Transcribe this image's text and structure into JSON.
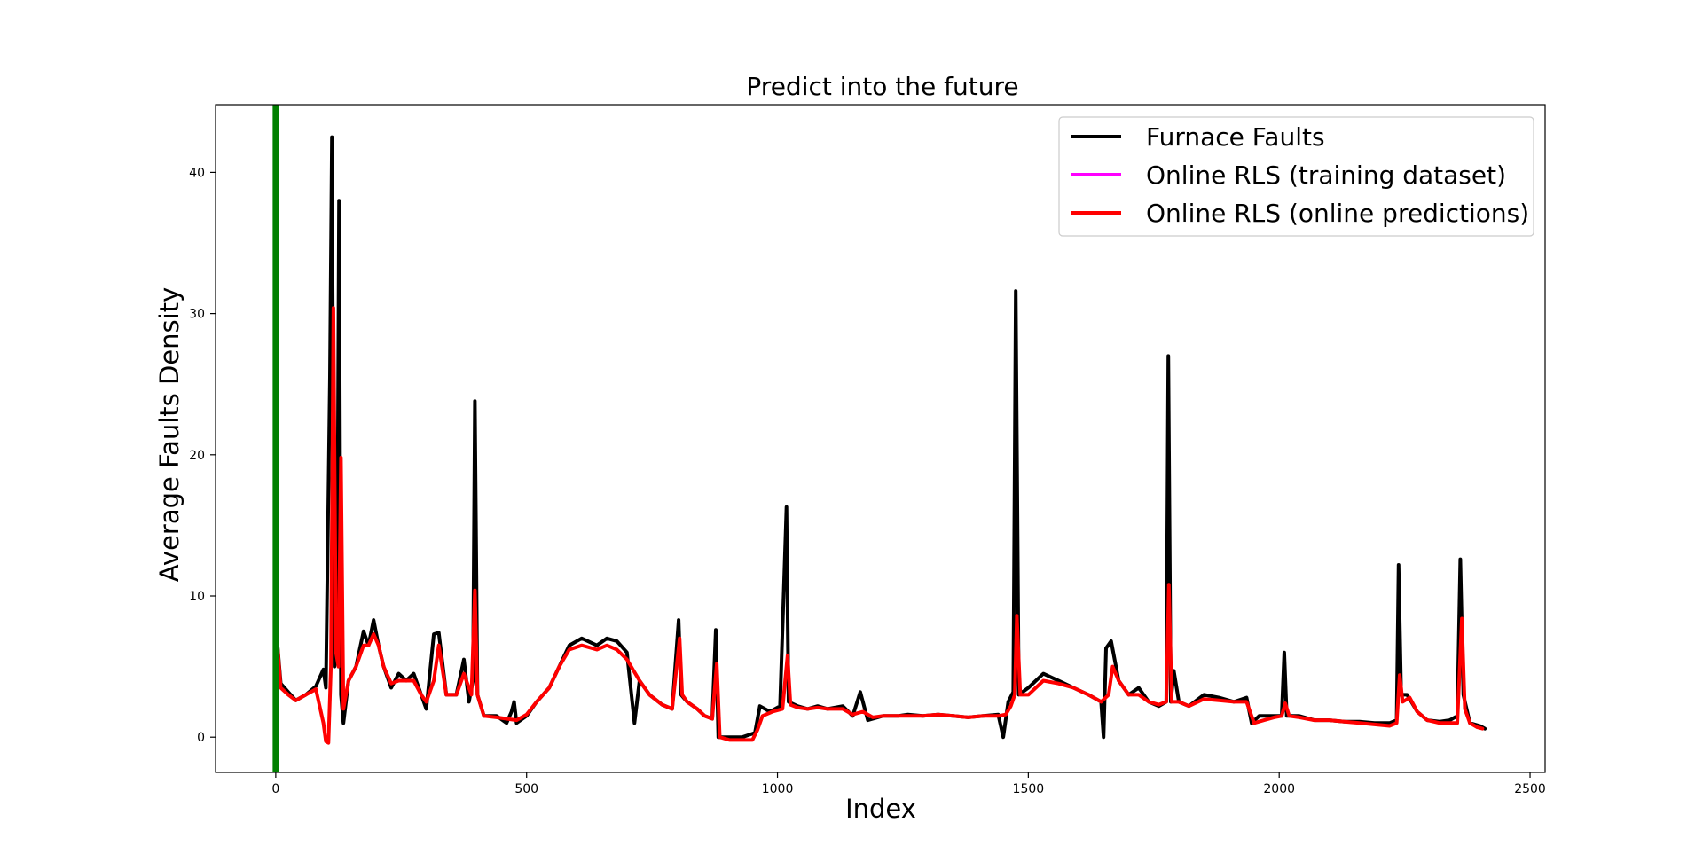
{
  "chart_data": {
    "type": "line",
    "title": "Predict into the future",
    "xlabel": "Index",
    "ylabel": "Average Faults Density",
    "xlim": [
      -120,
      2530
    ],
    "ylim": [
      -2.5,
      44.8
    ],
    "xticks": [
      0,
      500,
      1000,
      1500,
      2000,
      2500
    ],
    "yticks": [
      0,
      10,
      20,
      30,
      40
    ],
    "grid": false,
    "legend_position": "top-right",
    "vertical_marker": {
      "x": 0,
      "color": "#008000"
    },
    "series": [
      {
        "name": "Furnace Faults",
        "color": "#000000",
        "points": [
          [
            0,
            8
          ],
          [
            10,
            3.8
          ],
          [
            25,
            3.2
          ],
          [
            40,
            2.6
          ],
          [
            60,
            3.0
          ],
          [
            80,
            3.6
          ],
          [
            95,
            4.8
          ],
          [
            100,
            3.5
          ],
          [
            108,
            25.5
          ],
          [
            112,
            42.5
          ],
          [
            117,
            5
          ],
          [
            122,
            6
          ],
          [
            126,
            38
          ],
          [
            130,
            3
          ],
          [
            135,
            1
          ],
          [
            145,
            4
          ],
          [
            160,
            5
          ],
          [
            175,
            7.5
          ],
          [
            185,
            6.5
          ],
          [
            195,
            8.3
          ],
          [
            205,
            6.5
          ],
          [
            215,
            5
          ],
          [
            230,
            3.5
          ],
          [
            245,
            4.5
          ],
          [
            260,
            4
          ],
          [
            275,
            4.5
          ],
          [
            290,
            3
          ],
          [
            300,
            2
          ],
          [
            315,
            7.3
          ],
          [
            325,
            7.4
          ],
          [
            340,
            3
          ],
          [
            360,
            3
          ],
          [
            375,
            5.5
          ],
          [
            385,
            2.5
          ],
          [
            393,
            4
          ],
          [
            397,
            23.8
          ],
          [
            402,
            3
          ],
          [
            415,
            1.5
          ],
          [
            440,
            1.5
          ],
          [
            460,
            1
          ],
          [
            470,
            1.8
          ],
          [
            475,
            2.5
          ],
          [
            480,
            1
          ],
          [
            500,
            1.5
          ],
          [
            520,
            2.5
          ],
          [
            545,
            3.5
          ],
          [
            565,
            5
          ],
          [
            585,
            6.5
          ],
          [
            610,
            7
          ],
          [
            640,
            6.5
          ],
          [
            660,
            7
          ],
          [
            680,
            6.8
          ],
          [
            700,
            6
          ],
          [
            715,
            1
          ],
          [
            725,
            4
          ],
          [
            745,
            3
          ],
          [
            770,
            2.3
          ],
          [
            790,
            2
          ],
          [
            803,
            8.3
          ],
          [
            808,
            3
          ],
          [
            820,
            2.5
          ],
          [
            840,
            2
          ],
          [
            855,
            1.5
          ],
          [
            870,
            1.3
          ],
          [
            877,
            7.6
          ],
          [
            882,
            0
          ],
          [
            905,
            0
          ],
          [
            930,
            0
          ],
          [
            955,
            0.3
          ],
          [
            965,
            2.2
          ],
          [
            985,
            1.8
          ],
          [
            1005,
            2.2
          ],
          [
            1018,
            16.3
          ],
          [
            1022,
            2.5
          ],
          [
            1040,
            2.2
          ],
          [
            1060,
            2
          ],
          [
            1080,
            2.2
          ],
          [
            1100,
            2
          ],
          [
            1130,
            2.2
          ],
          [
            1150,
            1.5
          ],
          [
            1165,
            3.2
          ],
          [
            1180,
            1.2
          ],
          [
            1210,
            1.5
          ],
          [
            1240,
            1.5
          ],
          [
            1260,
            1.6
          ],
          [
            1290,
            1.5
          ],
          [
            1320,
            1.6
          ],
          [
            1350,
            1.5
          ],
          [
            1380,
            1.4
          ],
          [
            1410,
            1.5
          ],
          [
            1440,
            1.6
          ],
          [
            1450,
            0
          ],
          [
            1460,
            2.5
          ],
          [
            1470,
            3.2
          ],
          [
            1475,
            31.6
          ],
          [
            1481,
            3
          ],
          [
            1500,
            3.5
          ],
          [
            1530,
            4.5
          ],
          [
            1560,
            4
          ],
          [
            1590,
            3.5
          ],
          [
            1620,
            3
          ],
          [
            1645,
            2.5
          ],
          [
            1650,
            0
          ],
          [
            1655,
            6.3
          ],
          [
            1665,
            6.8
          ],
          [
            1680,
            4
          ],
          [
            1700,
            3
          ],
          [
            1720,
            3.5
          ],
          [
            1740,
            2.5
          ],
          [
            1760,
            2.2
          ],
          [
            1775,
            2.5
          ],
          [
            1779,
            27
          ],
          [
            1784,
            2.5
          ],
          [
            1790,
            4.7
          ],
          [
            1800,
            2.5
          ],
          [
            1820,
            2.2
          ],
          [
            1850,
            3
          ],
          [
            1880,
            2.8
          ],
          [
            1910,
            2.5
          ],
          [
            1935,
            2.8
          ],
          [
            1945,
            1
          ],
          [
            1960,
            1.5
          ],
          [
            1990,
            1.5
          ],
          [
            2005,
            1.5
          ],
          [
            2010,
            6
          ],
          [
            2015,
            1.5
          ],
          [
            2040,
            1.5
          ],
          [
            2070,
            1.2
          ],
          [
            2100,
            1.2
          ],
          [
            2130,
            1.1
          ],
          [
            2160,
            1.1
          ],
          [
            2190,
            1.0
          ],
          [
            2220,
            1.0
          ],
          [
            2234,
            1.2
          ],
          [
            2238,
            12.2
          ],
          [
            2243,
            3
          ],
          [
            2255,
            3
          ],
          [
            2275,
            1.8
          ],
          [
            2295,
            1.2
          ],
          [
            2320,
            1.1
          ],
          [
            2340,
            1.2
          ],
          [
            2355,
            1.5
          ],
          [
            2361,
            12.6
          ],
          [
            2367,
            3
          ],
          [
            2380,
            1
          ],
          [
            2400,
            0.8
          ],
          [
            2410,
            0.6
          ]
        ]
      },
      {
        "name": "Online RLS (training dataset)",
        "color": "#ff00ff",
        "points": []
      },
      {
        "name": "Online RLS (online predictions)",
        "color": "#ff0000",
        "points": [
          [
            0,
            8
          ],
          [
            10,
            3.5
          ],
          [
            25,
            3
          ],
          [
            40,
            2.6
          ],
          [
            60,
            3.0
          ],
          [
            80,
            3.4
          ],
          [
            95,
            1
          ],
          [
            100,
            -0.3
          ],
          [
            105,
            -0.4
          ],
          [
            110,
            5
          ],
          [
            115,
            30.4
          ],
          [
            120,
            6
          ],
          [
            125,
            5
          ],
          [
            130,
            19.8
          ],
          [
            135,
            2
          ],
          [
            145,
            4
          ],
          [
            160,
            5
          ],
          [
            175,
            6.5
          ],
          [
            185,
            6.5
          ],
          [
            195,
            7.3
          ],
          [
            205,
            6.5
          ],
          [
            215,
            5
          ],
          [
            230,
            3.8
          ],
          [
            245,
            4
          ],
          [
            260,
            4
          ],
          [
            275,
            4
          ],
          [
            290,
            3
          ],
          [
            300,
            2.5
          ],
          [
            315,
            4
          ],
          [
            325,
            6.5
          ],
          [
            340,
            3
          ],
          [
            360,
            3
          ],
          [
            375,
            4.5
          ],
          [
            390,
            3
          ],
          [
            397,
            10.4
          ],
          [
            402,
            3
          ],
          [
            415,
            1.5
          ],
          [
            440,
            1.4
          ],
          [
            460,
            1.3
          ],
          [
            480,
            1.2
          ],
          [
            500,
            1.6
          ],
          [
            520,
            2.5
          ],
          [
            545,
            3.5
          ],
          [
            565,
            5
          ],
          [
            585,
            6.2
          ],
          [
            610,
            6.5
          ],
          [
            640,
            6.2
          ],
          [
            660,
            6.5
          ],
          [
            680,
            6.2
          ],
          [
            700,
            5.5
          ],
          [
            725,
            4
          ],
          [
            745,
            3
          ],
          [
            770,
            2.3
          ],
          [
            790,
            2
          ],
          [
            805,
            7
          ],
          [
            810,
            3
          ],
          [
            820,
            2.5
          ],
          [
            840,
            2
          ],
          [
            855,
            1.5
          ],
          [
            870,
            1.3
          ],
          [
            879,
            5.2
          ],
          [
            885,
            0
          ],
          [
            905,
            -0.2
          ],
          [
            930,
            -0.2
          ],
          [
            950,
            -0.2
          ],
          [
            960,
            0.5
          ],
          [
            970,
            1.5
          ],
          [
            990,
            1.8
          ],
          [
            1010,
            2
          ],
          [
            1020,
            5.8
          ],
          [
            1026,
            2.3
          ],
          [
            1040,
            2.1
          ],
          [
            1060,
            2
          ],
          [
            1080,
            2.1
          ],
          [
            1100,
            2
          ],
          [
            1130,
            2
          ],
          [
            1150,
            1.6
          ],
          [
            1170,
            1.8
          ],
          [
            1190,
            1.4
          ],
          [
            1210,
            1.5
          ],
          [
            1240,
            1.5
          ],
          [
            1260,
            1.5
          ],
          [
            1290,
            1.5
          ],
          [
            1320,
            1.6
          ],
          [
            1350,
            1.5
          ],
          [
            1380,
            1.4
          ],
          [
            1410,
            1.5
          ],
          [
            1440,
            1.5
          ],
          [
            1455,
            1.6
          ],
          [
            1465,
            2.2
          ],
          [
            1473,
            3
          ],
          [
            1477,
            8.6
          ],
          [
            1484,
            3
          ],
          [
            1500,
            3
          ],
          [
            1530,
            4
          ],
          [
            1560,
            3.8
          ],
          [
            1590,
            3.5
          ],
          [
            1620,
            3
          ],
          [
            1645,
            2.5
          ],
          [
            1660,
            3
          ],
          [
            1668,
            5
          ],
          [
            1680,
            4
          ],
          [
            1700,
            3
          ],
          [
            1720,
            3
          ],
          [
            1740,
            2.5
          ],
          [
            1760,
            2.3
          ],
          [
            1775,
            2.5
          ],
          [
            1780,
            10.8
          ],
          [
            1786,
            2.5
          ],
          [
            1800,
            2.5
          ],
          [
            1820,
            2.2
          ],
          [
            1850,
            2.7
          ],
          [
            1880,
            2.6
          ],
          [
            1910,
            2.5
          ],
          [
            1935,
            2.5
          ],
          [
            1950,
            1
          ],
          [
            1970,
            1.2
          ],
          [
            1990,
            1.4
          ],
          [
            2005,
            1.5
          ],
          [
            2012,
            2.4
          ],
          [
            2020,
            1.5
          ],
          [
            2040,
            1.4
          ],
          [
            2070,
            1.2
          ],
          [
            2100,
            1.2
          ],
          [
            2130,
            1.1
          ],
          [
            2160,
            1.0
          ],
          [
            2190,
            0.9
          ],
          [
            2220,
            0.8
          ],
          [
            2234,
            1
          ],
          [
            2240,
            4.4
          ],
          [
            2246,
            2.5
          ],
          [
            2260,
            2.8
          ],
          [
            2275,
            1.8
          ],
          [
            2295,
            1.2
          ],
          [
            2320,
            1
          ],
          [
            2340,
            1
          ],
          [
            2355,
            1
          ],
          [
            2364,
            8.4
          ],
          [
            2370,
            2
          ],
          [
            2380,
            1
          ],
          [
            2395,
            0.7
          ],
          [
            2405,
            0.6
          ]
        ]
      }
    ]
  }
}
